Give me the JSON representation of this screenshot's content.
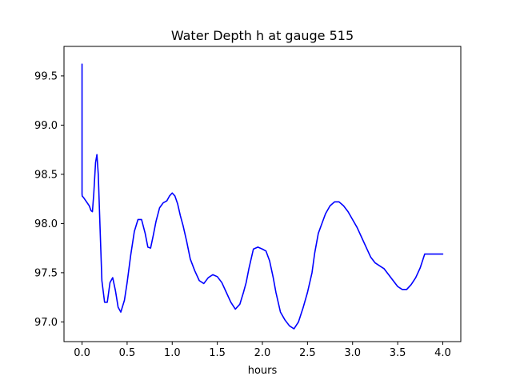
{
  "chart_data": {
    "type": "line",
    "title": "Water Depth h at gauge 515",
    "xlabel": "hours",
    "ylabel": "",
    "xlim": [
      -0.2,
      4.2
    ],
    "ylim": [
      96.8,
      99.8
    ],
    "xticks": [
      0.0,
      0.5,
      1.0,
      1.5,
      2.0,
      2.5,
      3.0,
      3.5,
      4.0
    ],
    "xtick_labels": [
      "0.0",
      "0.5",
      "1.0",
      "1.5",
      "2.0",
      "2.5",
      "3.0",
      "3.5",
      "4.0"
    ],
    "yticks": [
      97.0,
      97.5,
      98.0,
      98.5,
      99.0,
      99.5
    ],
    "ytick_labels": [
      "97.0",
      "97.5",
      "98.0",
      "98.5",
      "99.0",
      "99.5"
    ],
    "grid": false,
    "legend": "none",
    "series": [
      {
        "color": "#0000ff",
        "x": [
          0.0,
          0.0,
          0.002,
          0.02,
          0.05,
          0.08,
          0.1,
          0.115,
          0.13,
          0.15,
          0.165,
          0.18,
          0.2,
          0.22,
          0.25,
          0.28,
          0.31,
          0.34,
          0.37,
          0.4,
          0.43,
          0.47,
          0.5,
          0.54,
          0.58,
          0.62,
          0.66,
          0.7,
          0.73,
          0.76,
          0.79,
          0.82,
          0.86,
          0.9,
          0.94,
          0.97,
          1.0,
          1.03,
          1.06,
          1.09,
          1.12,
          1.16,
          1.2,
          1.25,
          1.3,
          1.35,
          1.4,
          1.45,
          1.5,
          1.55,
          1.6,
          1.65,
          1.7,
          1.75,
          1.79,
          1.82,
          1.85,
          1.9,
          1.95,
          2.0,
          2.04,
          2.08,
          2.12,
          2.15,
          2.2,
          2.25,
          2.3,
          2.35,
          2.4,
          2.45,
          2.5,
          2.55,
          2.58,
          2.62,
          2.66,
          2.7,
          2.75,
          2.8,
          2.85,
          2.9,
          2.95,
          3.0,
          3.05,
          3.1,
          3.15,
          3.2,
          3.25,
          3.3,
          3.35,
          3.4,
          3.45,
          3.5,
          3.55,
          3.6,
          3.65,
          3.7,
          3.75,
          3.8,
          3.85,
          3.9,
          3.95,
          4.0
        ],
        "values": [
          99.62,
          98.3,
          98.28,
          98.26,
          98.22,
          98.18,
          98.13,
          98.12,
          98.3,
          98.62,
          98.7,
          98.5,
          97.95,
          97.42,
          97.2,
          97.2,
          97.4,
          97.45,
          97.32,
          97.15,
          97.1,
          97.22,
          97.4,
          97.68,
          97.92,
          98.04,
          98.04,
          97.9,
          97.76,
          97.75,
          97.88,
          98.02,
          98.16,
          98.21,
          98.23,
          98.28,
          98.31,
          98.28,
          98.2,
          98.08,
          97.98,
          97.82,
          97.64,
          97.52,
          97.42,
          97.39,
          97.45,
          97.48,
          97.46,
          97.4,
          97.3,
          97.2,
          97.13,
          97.18,
          97.3,
          97.4,
          97.54,
          97.74,
          97.76,
          97.74,
          97.72,
          97.62,
          97.45,
          97.3,
          97.1,
          97.02,
          96.96,
          96.93,
          97.0,
          97.14,
          97.3,
          97.5,
          97.7,
          97.9,
          98.0,
          98.1,
          98.18,
          98.22,
          98.22,
          98.18,
          98.12,
          98.04,
          97.96,
          97.86,
          97.76,
          97.66,
          97.6,
          97.57,
          97.54,
          97.48,
          97.42,
          97.36,
          97.33,
          97.33,
          97.38,
          97.45,
          97.55,
          97.69,
          97.69,
          97.69,
          97.69,
          97.69
        ]
      }
    ]
  }
}
